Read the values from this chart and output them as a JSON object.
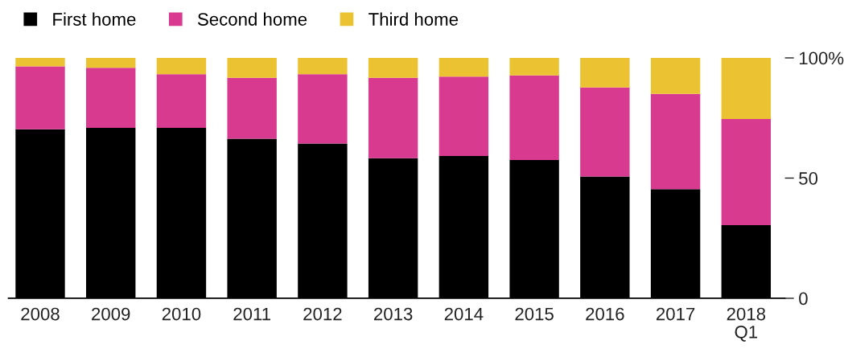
{
  "chart_data": {
    "type": "bar",
    "stacked": true,
    "categories": [
      "2008",
      "2009",
      "2010",
      "2011",
      "2012",
      "2013",
      "2014",
      "2015",
      "2016",
      "2017",
      "2018\nQ1"
    ],
    "series": [
      {
        "name": "First home",
        "color": "#000000",
        "values": [
          70.3,
          70.9,
          70.9,
          66.4,
          64.4,
          58.3,
          59.2,
          57.5,
          50.7,
          45.4,
          30.4
        ]
      },
      {
        "name": "Second home",
        "color": "#d83a8f",
        "values": [
          26.2,
          25.0,
          22.3,
          25.3,
          28.8,
          33.4,
          33.0,
          35.2,
          37.0,
          39.6,
          44.2
        ]
      },
      {
        "name": "Third home",
        "color": "#ebc232",
        "values": [
          3.5,
          4.1,
          6.8,
          8.3,
          6.8,
          8.3,
          7.8,
          7.3,
          12.3,
          15.0,
          25.4
        ]
      }
    ],
    "ylim": [
      0,
      100
    ],
    "yticks": [
      0,
      50,
      {
        "value": 100,
        "label": "100%"
      }
    ],
    "grid": false,
    "legend": "top left"
  }
}
